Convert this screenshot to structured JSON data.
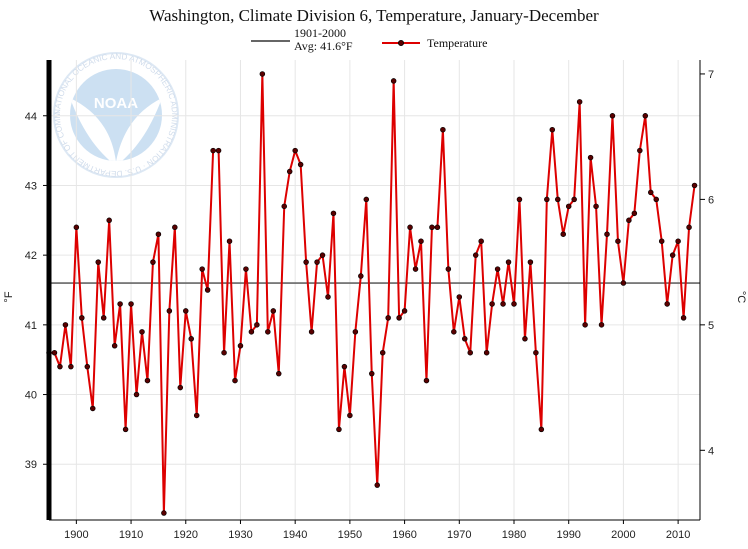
{
  "chart_data": {
    "type": "line",
    "title": "Washington, Climate Division 6, Temperature, January-December",
    "legend": {
      "placement": "top-center",
      "avg_label_line1": "1901-2000",
      "avg_label_line2": "Avg: 41.6°F",
      "series_label": "Temperature"
    },
    "ylabel_left": "°F",
    "ylabel_right": "°C",
    "xlim": [
      1895,
      2014
    ],
    "ylim": [
      38.2,
      44.8
    ],
    "x_ticks": [
      "1900",
      "1910",
      "1920",
      "1930",
      "1940",
      "1950",
      "1960",
      "1970",
      "1980",
      "1990",
      "2000",
      "2010"
    ],
    "y_ticks_left": [
      "39",
      "40",
      "41",
      "42",
      "43",
      "44"
    ],
    "y_ticks_right": [
      "4",
      "5",
      "6",
      "7"
    ],
    "grid": true,
    "average": 41.6,
    "colors": {
      "series": "#dd0000",
      "marker": "#5a0000",
      "average": "#666666",
      "left_axis": "#000000"
    },
    "logo_text": "NOAA",
    "logo_ring_text": "NATIONAL OCEANIC AND ATMOSPHERIC ADMINISTRATION · U.S. DEPARTMENT OF COMMERCE ·",
    "series": [
      {
        "name": "Temperature",
        "x": [
          1895,
          1896,
          1897,
          1898,
          1899,
          1900,
          1901,
          1902,
          1903,
          1904,
          1905,
          1906,
          1907,
          1908,
          1909,
          1910,
          1911,
          1912,
          1913,
          1914,
          1915,
          1916,
          1917,
          1918,
          1919,
          1920,
          1921,
          1922,
          1923,
          1924,
          1925,
          1926,
          1927,
          1928,
          1929,
          1930,
          1931,
          1932,
          1933,
          1934,
          1935,
          1936,
          1937,
          1938,
          1939,
          1940,
          1941,
          1942,
          1943,
          1944,
          1945,
          1946,
          1947,
          1948,
          1949,
          1950,
          1951,
          1952,
          1953,
          1954,
          1955,
          1956,
          1957,
          1958,
          1959,
          1960,
          1961,
          1962,
          1963,
          1964,
          1965,
          1966,
          1967,
          1968,
          1969,
          1970,
          1971,
          1972,
          1973,
          1974,
          1975,
          1976,
          1977,
          1978,
          1979,
          1980,
          1981,
          1982,
          1983,
          1984,
          1985,
          1986,
          1987,
          1988,
          1989,
          1990,
          1991,
          1992,
          1993,
          1994,
          1995,
          1996,
          1997,
          1998,
          1999,
          2000,
          2001,
          2002,
          2003,
          2004,
          2005,
          2006,
          2007,
          2008,
          2009,
          2010,
          2011,
          2012,
          2013
        ],
        "values": [
          40.6,
          40.6,
          40.4,
          41.0,
          40.4,
          42.4,
          41.1,
          40.4,
          39.8,
          41.9,
          41.1,
          42.5,
          40.7,
          41.3,
          39.5,
          41.3,
          40.0,
          40.9,
          40.2,
          41.9,
          42.3,
          38.3,
          41.2,
          42.4,
          40.1,
          41.2,
          40.8,
          39.7,
          41.8,
          41.5,
          43.5,
          43.5,
          40.6,
          42.2,
          40.2,
          40.7,
          41.8,
          40.9,
          41.0,
          44.6,
          40.9,
          41.2,
          40.3,
          42.7,
          43.2,
          43.5,
          43.3,
          41.9,
          40.9,
          41.9,
          42.0,
          41.4,
          42.6,
          39.5,
          40.4,
          39.7,
          40.9,
          41.7,
          42.8,
          40.3,
          38.7,
          40.6,
          41.1,
          44.5,
          41.1,
          41.2,
          42.4,
          41.8,
          42.2,
          40.2,
          42.4,
          42.4,
          43.8,
          41.8,
          40.9,
          41.4,
          40.8,
          40.6,
          42.0,
          42.2,
          40.6,
          41.3,
          41.8,
          41.3,
          41.9,
          41.3,
          42.8,
          40.8,
          41.9,
          40.6,
          39.5,
          42.8,
          43.8,
          42.8,
          42.3,
          42.7,
          42.8,
          44.2,
          41.0,
          43.4,
          42.7,
          41.0,
          42.3,
          44.0,
          42.2,
          41.6,
          42.5,
          42.6,
          43.5,
          44.0,
          42.9,
          42.8,
          42.2,
          41.3,
          42.0,
          42.2,
          41.1,
          42.4,
          43.0
        ]
      }
    ]
  }
}
